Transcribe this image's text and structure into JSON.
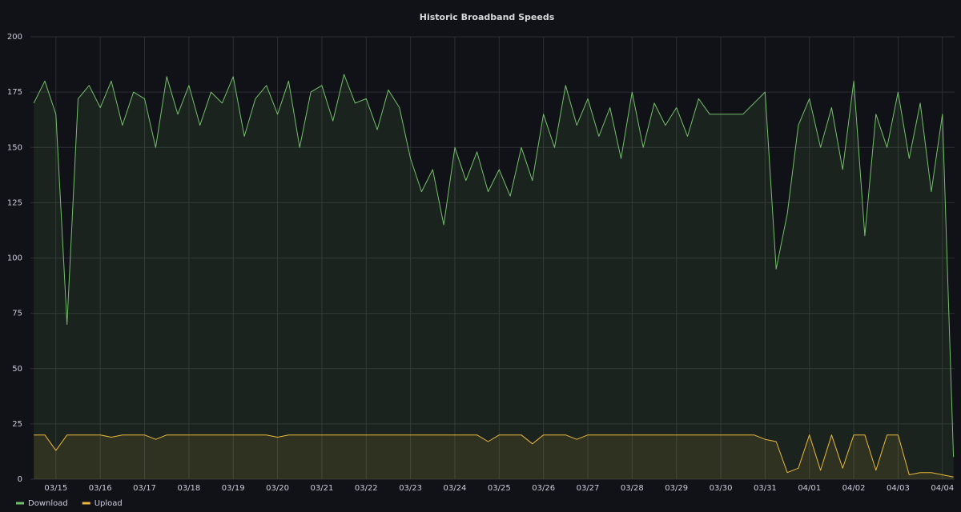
{
  "chart_data": {
    "type": "line",
    "title": "Historic Broadband Speeds",
    "categories": [
      null,
      null,
      "03/15",
      null,
      null,
      null,
      "03/16",
      null,
      null,
      null,
      "03/17",
      null,
      null,
      null,
      "03/18",
      null,
      null,
      null,
      "03/19",
      null,
      null,
      null,
      "03/20",
      null,
      null,
      null,
      "03/21",
      null,
      null,
      null,
      "03/22",
      null,
      null,
      null,
      "03/23",
      null,
      null,
      null,
      "03/24",
      null,
      null,
      null,
      "03/25",
      null,
      null,
      null,
      "03/26",
      null,
      null,
      null,
      "03/27",
      null,
      null,
      null,
      "03/28",
      null,
      null,
      null,
      "03/29",
      null,
      null,
      null,
      "03/30",
      null,
      null,
      null,
      "03/31",
      null,
      null,
      null,
      "04/01",
      null,
      null,
      null,
      "04/02",
      null,
      null,
      null,
      "04/03",
      null,
      null,
      null,
      "04/04",
      null
    ],
    "series": [
      {
        "name": "Download",
        "color": "#73bf69",
        "values": [
          170,
          180,
          165,
          70,
          172,
          178,
          168,
          180,
          160,
          175,
          172,
          150,
          182,
          165,
          178,
          160,
          175,
          170,
          182,
          155,
          172,
          178,
          165,
          180,
          150,
          175,
          178,
          162,
          183,
          170,
          172,
          158,
          176,
          168,
          145,
          130,
          140,
          115,
          150,
          135,
          148,
          130,
          140,
          128,
          150,
          135,
          165,
          150,
          178,
          160,
          172,
          155,
          168,
          145,
          175,
          150,
          170,
          160,
          168,
          155,
          172,
          165,
          165,
          165,
          165,
          170,
          175,
          95,
          120,
          160,
          172,
          150,
          168,
          140,
          180,
          110,
          165,
          150,
          175,
          145,
          170,
          130,
          165,
          10
        ]
      },
      {
        "name": "Upload",
        "color": "#eab839",
        "values": [
          20,
          20,
          13,
          20,
          20,
          20,
          20,
          19,
          20,
          20,
          20,
          18,
          20,
          20,
          20,
          20,
          20,
          20,
          20,
          20,
          20,
          20,
          19,
          20,
          20,
          20,
          20,
          20,
          20,
          20,
          20,
          20,
          20,
          20,
          20,
          20,
          20,
          20,
          20,
          20,
          20,
          17,
          20,
          20,
          20,
          16,
          20,
          20,
          20,
          18,
          20,
          20,
          20,
          20,
          20,
          20,
          20,
          20,
          20,
          20,
          20,
          20,
          20,
          20,
          20,
          20,
          18,
          17,
          3,
          5,
          20,
          4,
          20,
          5,
          20,
          20,
          4,
          20,
          20,
          2,
          3,
          3,
          2,
          1
        ]
      }
    ],
    "ylim": [
      0,
      200
    ],
    "yticks": [
      0,
      25,
      50,
      75,
      100,
      125,
      150,
      175,
      200
    ],
    "grid": true,
    "legend": "bottom-left"
  }
}
